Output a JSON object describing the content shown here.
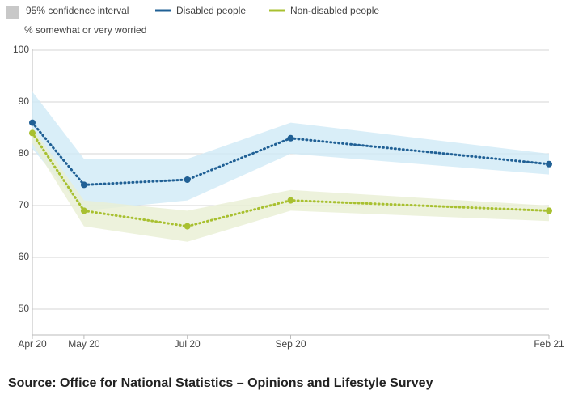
{
  "chart_data": {
    "type": "line",
    "x": [
      "Apr 20",
      "May 20",
      "Jul 20",
      "Sep 20",
      "Feb 21"
    ],
    "y_axis_label": "% somewhat or very worried",
    "band_legend": "95% confidence interval",
    "band_legend_color": "#c8c8c8",
    "source": "Source: Office for National Statistics – Opinions and Lifestyle Survey",
    "ylim": [
      45,
      100
    ],
    "yticks": [
      50,
      60,
      70,
      80,
      90,
      100
    ],
    "grid": true,
    "series": [
      {
        "name": "Disabled people",
        "color": "#206095",
        "band_color": "#cfeaf6",
        "values": [
          86,
          74,
          75,
          83,
          78
        ],
        "lower": [
          81,
          69,
          71,
          80,
          76
        ],
        "upper": [
          92,
          79,
          79,
          86,
          80
        ]
      },
      {
        "name": "Non-disabled people",
        "color": "#a8c030",
        "band_color": "#e9efd3",
        "values": [
          84,
          69,
          66,
          71,
          69
        ],
        "lower": [
          82,
          66,
          63,
          69,
          67
        ],
        "upper": [
          85,
          71,
          69,
          73,
          70
        ]
      }
    ]
  }
}
